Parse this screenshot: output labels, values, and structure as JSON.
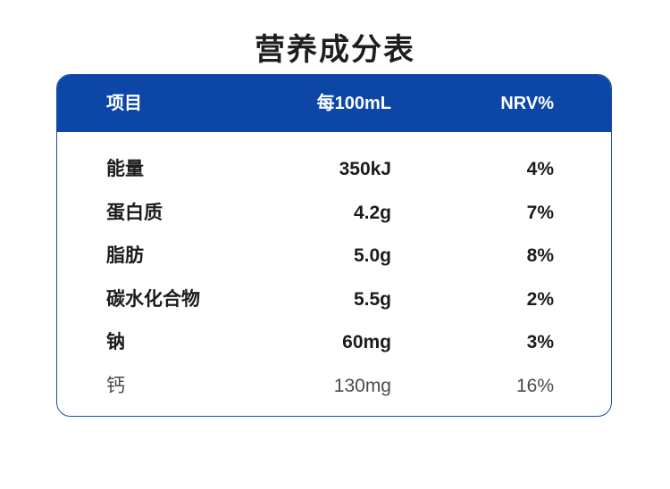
{
  "title": "营养成分表",
  "table": {
    "headers": [
      "项目",
      "每100mL",
      "NRV%"
    ],
    "rows": [
      {
        "item": "能量",
        "per100": "350kJ",
        "nrv": "4%"
      },
      {
        "item": "蛋白质",
        "per100": "4.2g",
        "nrv": "7%"
      },
      {
        "item": "脂肪",
        "per100": "5.0g",
        "nrv": "8%"
      },
      {
        "item": "碳水化合物",
        "per100": "5.5g",
        "nrv": "2%"
      },
      {
        "item": "钠",
        "per100": "60mg",
        "nrv": "3%"
      },
      {
        "item": "钙",
        "per100": "130mg",
        "nrv": "16%"
      }
    ]
  },
  "colors": {
    "header_bg": "#0c47a8",
    "border": "#1e4ba3"
  }
}
